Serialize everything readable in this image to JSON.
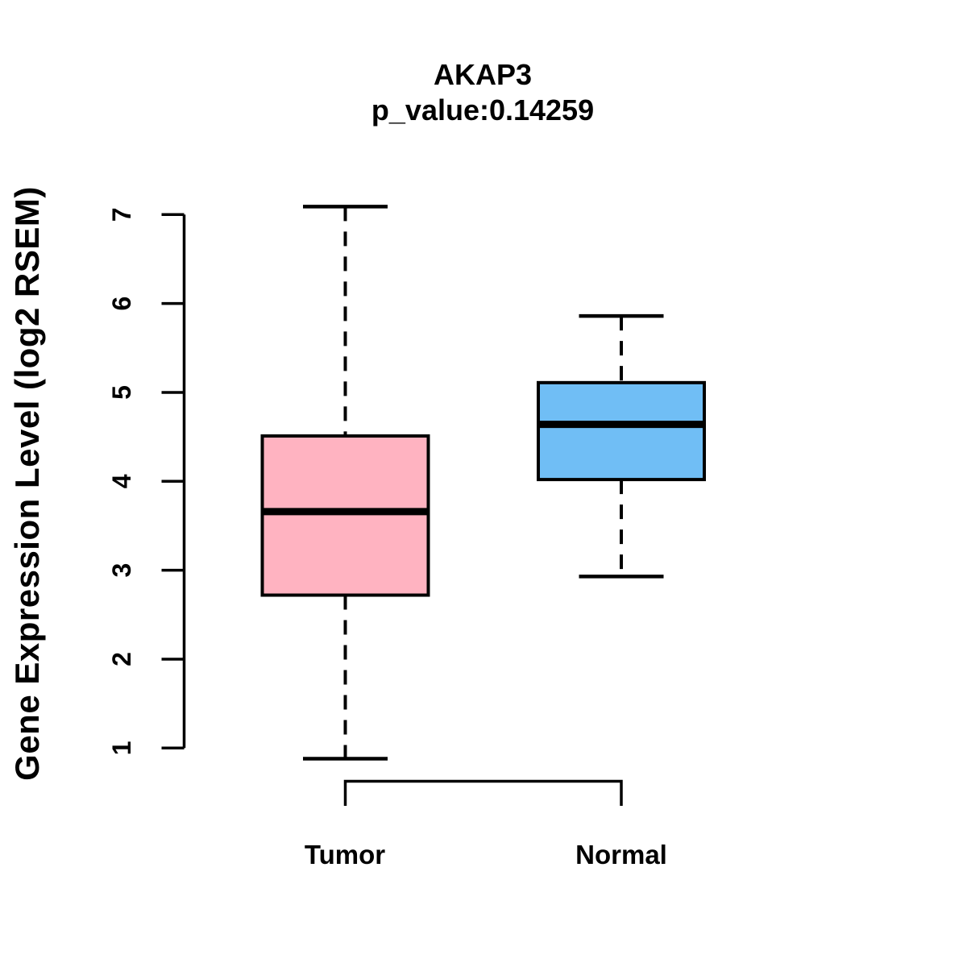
{
  "chart_data": {
    "type": "boxplot",
    "title": "AKAP3",
    "subtitle": "p_value:0.14259",
    "ylabel": "Gene Expression Level (log2 RSEM)",
    "categories": [
      "Tumor",
      "Normal"
    ],
    "y_ticks": [
      1,
      2,
      3,
      4,
      5,
      6,
      7
    ],
    "ylim": [
      1,
      7
    ],
    "grid": false,
    "legend": "none",
    "whisker_style": "dashed",
    "series": [
      {
        "name": "Tumor",
        "fill_color": "#FFB3C1",
        "border_color": "#000000",
        "min": 0.88,
        "q1": 2.72,
        "median": 3.66,
        "q3": 4.51,
        "max": 7.09
      },
      {
        "name": "Normal",
        "fill_color": "#70BEF5",
        "border_color": "#000000",
        "min": 2.93,
        "q1": 4.02,
        "median": 4.64,
        "q3": 5.11,
        "max": 5.86
      }
    ]
  }
}
